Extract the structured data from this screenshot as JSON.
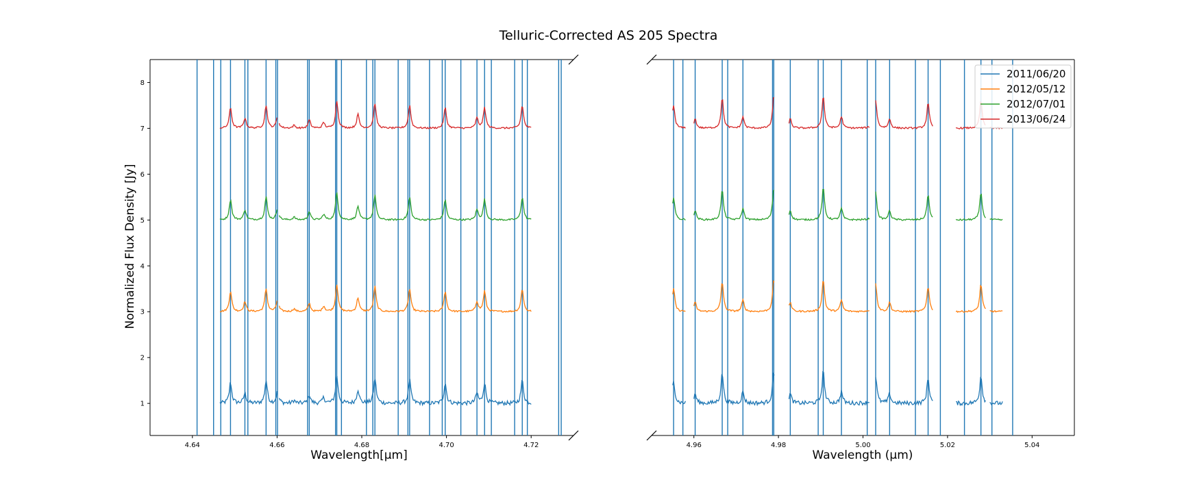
{
  "chart_data": {
    "type": "line",
    "title": "Telluric-Corrected AS 205 Spectra",
    "ylabel": "Normalized Flux Density [Jy]",
    "ylim": [
      0.3,
      8.5
    ],
    "yticks": [
      1,
      2,
      3,
      4,
      5,
      6,
      7,
      8
    ],
    "legend_position": "top-right",
    "panels": [
      {
        "xlabel": "Wavelength[$\\mu$m]",
        "xlabel_display": "Wavelength[μm]",
        "xlim": [
          4.63,
          4.73
        ],
        "xticks": [
          "4.64",
          "4.66",
          "4.68",
          "4.70",
          "4.72"
        ],
        "vertical_lines": [
          4.6411,
          4.645,
          4.6467,
          4.649,
          4.6524,
          4.6531,
          4.6574,
          4.6597,
          4.6601,
          4.6672,
          4.6676,
          4.6738,
          4.6741,
          4.6752,
          4.6811,
          4.6826,
          4.6831,
          4.6886,
          4.6909,
          4.6913,
          4.696,
          4.699,
          4.6997,
          4.7034,
          4.7072,
          4.709,
          4.7106,
          4.7161,
          4.7179,
          4.7191,
          4.7265,
          4.7271
        ],
        "segments": [
          [
            4.6465,
            4.66
          ],
          [
            4.6605,
            4.72
          ]
        ],
        "emission_peaks": [
          {
            "x": 4.649,
            "h": 0.45
          },
          {
            "x": 4.6524,
            "h": 0.22
          },
          {
            "x": 4.6574,
            "h": 0.5
          },
          {
            "x": 4.6601,
            "h": 0.25
          },
          {
            "x": 4.664,
            "h": 0.06
          },
          {
            "x": 4.6676,
            "h": 0.18
          },
          {
            "x": 4.671,
            "h": 0.12
          },
          {
            "x": 4.6741,
            "h": 0.6
          },
          {
            "x": 4.6791,
            "h": 0.3
          },
          {
            "x": 4.6831,
            "h": 0.55
          },
          {
            "x": 4.6913,
            "h": 0.5
          },
          {
            "x": 4.6997,
            "h": 0.45
          },
          {
            "x": 4.7072,
            "h": 0.22
          },
          {
            "x": 4.709,
            "h": 0.45
          },
          {
            "x": 4.7179,
            "h": 0.5
          }
        ]
      },
      {
        "xlabel": "Wavelength ($\\mu$m)",
        "xlabel_display": "Wavelength (μm)",
        "xlim": [
          4.95,
          5.05
        ],
        "xticks": [
          "4.96",
          "4.98",
          "5.00",
          "5.02",
          "5.04"
        ],
        "vertical_lines": [
          4.9552,
          4.9574,
          4.9603,
          4.9667,
          4.968,
          4.9716,
          4.9786,
          4.9789,
          4.9828,
          4.9894,
          4.9906,
          4.9949,
          5.001,
          5.003,
          5.0063,
          5.0124,
          5.0154,
          5.0183,
          5.024,
          5.0279,
          5.0305,
          5.0354
        ],
        "segments": [
          [
            4.955,
            4.958
          ],
          [
            4.96,
            4.979
          ],
          [
            4.9825,
            5.0015
          ],
          [
            5.003,
            5.0165
          ],
          [
            5.022,
            5.029
          ],
          [
            5.03,
            5.033
          ]
        ],
        "emission_peaks": [
          {
            "x": 4.9552,
            "h": 0.5
          },
          {
            "x": 4.9603,
            "h": 0.2
          },
          {
            "x": 4.9667,
            "h": 0.65
          },
          {
            "x": 4.9716,
            "h": 0.25
          },
          {
            "x": 4.9789,
            "h": 0.7
          },
          {
            "x": 4.9828,
            "h": 0.2
          },
          {
            "x": 4.9906,
            "h": 0.7
          },
          {
            "x": 4.9949,
            "h": 0.25
          },
          {
            "x": 5.003,
            "h": 0.6
          },
          {
            "x": 5.0063,
            "h": 0.2
          },
          {
            "x": 5.0154,
            "h": 0.55
          },
          {
            "x": 5.0279,
            "h": 0.6
          }
        ]
      }
    ],
    "series": [
      {
        "name": "2011/06/20",
        "color": "#1f77b4",
        "offset": 1,
        "noise": 0.045
      },
      {
        "name": "2012/05/12",
        "color": "#ff7f0e",
        "offset": 3,
        "noise": 0.018
      },
      {
        "name": "2012/07/01",
        "color": "#2ca02c",
        "offset": 5,
        "noise": 0.018
      },
      {
        "name": "2013/06/24",
        "color": "#d62728",
        "offset": 7,
        "noise": 0.018
      }
    ]
  }
}
